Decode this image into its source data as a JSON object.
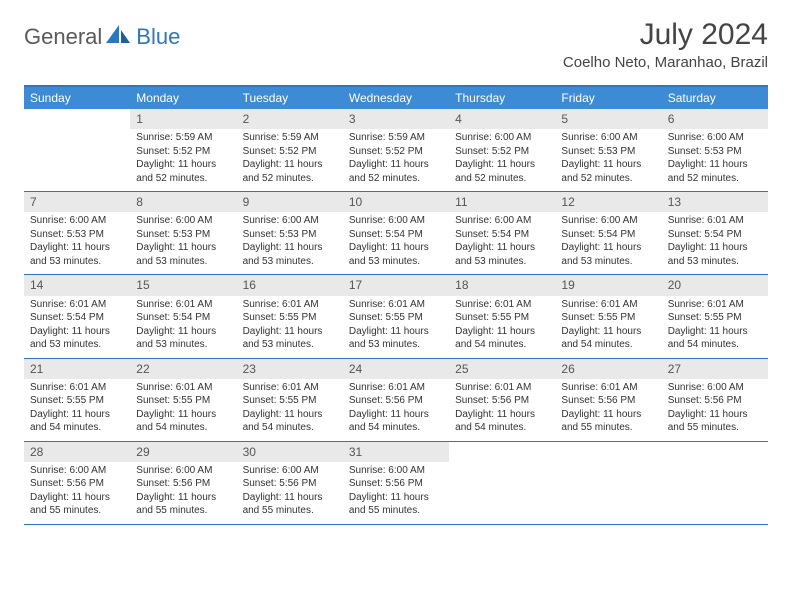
{
  "logo": {
    "text1": "General",
    "text2": "Blue"
  },
  "title": "July 2024",
  "location": "Coelho Neto, Maranhao, Brazil",
  "colors": {
    "header_bg": "#3d8bd4",
    "border": "#2b78c2",
    "daynum_bg": "#e9e9e9",
    "text": "#333333",
    "logo_gray": "#5a5a5a",
    "logo_blue": "#2b78c2"
  },
  "weekdays": [
    "Sunday",
    "Monday",
    "Tuesday",
    "Wednesday",
    "Thursday",
    "Friday",
    "Saturday"
  ],
  "weeks": [
    [
      {
        "n": "",
        "sr": "",
        "ss": "",
        "dl1": "",
        "dl2": ""
      },
      {
        "n": "1",
        "sr": "Sunrise: 5:59 AM",
        "ss": "Sunset: 5:52 PM",
        "dl1": "Daylight: 11 hours",
        "dl2": "and 52 minutes."
      },
      {
        "n": "2",
        "sr": "Sunrise: 5:59 AM",
        "ss": "Sunset: 5:52 PM",
        "dl1": "Daylight: 11 hours",
        "dl2": "and 52 minutes."
      },
      {
        "n": "3",
        "sr": "Sunrise: 5:59 AM",
        "ss": "Sunset: 5:52 PM",
        "dl1": "Daylight: 11 hours",
        "dl2": "and 52 minutes."
      },
      {
        "n": "4",
        "sr": "Sunrise: 6:00 AM",
        "ss": "Sunset: 5:52 PM",
        "dl1": "Daylight: 11 hours",
        "dl2": "and 52 minutes."
      },
      {
        "n": "5",
        "sr": "Sunrise: 6:00 AM",
        "ss": "Sunset: 5:53 PM",
        "dl1": "Daylight: 11 hours",
        "dl2": "and 52 minutes."
      },
      {
        "n": "6",
        "sr": "Sunrise: 6:00 AM",
        "ss": "Sunset: 5:53 PM",
        "dl1": "Daylight: 11 hours",
        "dl2": "and 52 minutes."
      }
    ],
    [
      {
        "n": "7",
        "sr": "Sunrise: 6:00 AM",
        "ss": "Sunset: 5:53 PM",
        "dl1": "Daylight: 11 hours",
        "dl2": "and 53 minutes."
      },
      {
        "n": "8",
        "sr": "Sunrise: 6:00 AM",
        "ss": "Sunset: 5:53 PM",
        "dl1": "Daylight: 11 hours",
        "dl2": "and 53 minutes."
      },
      {
        "n": "9",
        "sr": "Sunrise: 6:00 AM",
        "ss": "Sunset: 5:53 PM",
        "dl1": "Daylight: 11 hours",
        "dl2": "and 53 minutes."
      },
      {
        "n": "10",
        "sr": "Sunrise: 6:00 AM",
        "ss": "Sunset: 5:54 PM",
        "dl1": "Daylight: 11 hours",
        "dl2": "and 53 minutes."
      },
      {
        "n": "11",
        "sr": "Sunrise: 6:00 AM",
        "ss": "Sunset: 5:54 PM",
        "dl1": "Daylight: 11 hours",
        "dl2": "and 53 minutes."
      },
      {
        "n": "12",
        "sr": "Sunrise: 6:00 AM",
        "ss": "Sunset: 5:54 PM",
        "dl1": "Daylight: 11 hours",
        "dl2": "and 53 minutes."
      },
      {
        "n": "13",
        "sr": "Sunrise: 6:01 AM",
        "ss": "Sunset: 5:54 PM",
        "dl1": "Daylight: 11 hours",
        "dl2": "and 53 minutes."
      }
    ],
    [
      {
        "n": "14",
        "sr": "Sunrise: 6:01 AM",
        "ss": "Sunset: 5:54 PM",
        "dl1": "Daylight: 11 hours",
        "dl2": "and 53 minutes."
      },
      {
        "n": "15",
        "sr": "Sunrise: 6:01 AM",
        "ss": "Sunset: 5:54 PM",
        "dl1": "Daylight: 11 hours",
        "dl2": "and 53 minutes."
      },
      {
        "n": "16",
        "sr": "Sunrise: 6:01 AM",
        "ss": "Sunset: 5:55 PM",
        "dl1": "Daylight: 11 hours",
        "dl2": "and 53 minutes."
      },
      {
        "n": "17",
        "sr": "Sunrise: 6:01 AM",
        "ss": "Sunset: 5:55 PM",
        "dl1": "Daylight: 11 hours",
        "dl2": "and 53 minutes."
      },
      {
        "n": "18",
        "sr": "Sunrise: 6:01 AM",
        "ss": "Sunset: 5:55 PM",
        "dl1": "Daylight: 11 hours",
        "dl2": "and 54 minutes."
      },
      {
        "n": "19",
        "sr": "Sunrise: 6:01 AM",
        "ss": "Sunset: 5:55 PM",
        "dl1": "Daylight: 11 hours",
        "dl2": "and 54 minutes."
      },
      {
        "n": "20",
        "sr": "Sunrise: 6:01 AM",
        "ss": "Sunset: 5:55 PM",
        "dl1": "Daylight: 11 hours",
        "dl2": "and 54 minutes."
      }
    ],
    [
      {
        "n": "21",
        "sr": "Sunrise: 6:01 AM",
        "ss": "Sunset: 5:55 PM",
        "dl1": "Daylight: 11 hours",
        "dl2": "and 54 minutes."
      },
      {
        "n": "22",
        "sr": "Sunrise: 6:01 AM",
        "ss": "Sunset: 5:55 PM",
        "dl1": "Daylight: 11 hours",
        "dl2": "and 54 minutes."
      },
      {
        "n": "23",
        "sr": "Sunrise: 6:01 AM",
        "ss": "Sunset: 5:55 PM",
        "dl1": "Daylight: 11 hours",
        "dl2": "and 54 minutes."
      },
      {
        "n": "24",
        "sr": "Sunrise: 6:01 AM",
        "ss": "Sunset: 5:56 PM",
        "dl1": "Daylight: 11 hours",
        "dl2": "and 54 minutes."
      },
      {
        "n": "25",
        "sr": "Sunrise: 6:01 AM",
        "ss": "Sunset: 5:56 PM",
        "dl1": "Daylight: 11 hours",
        "dl2": "and 54 minutes."
      },
      {
        "n": "26",
        "sr": "Sunrise: 6:01 AM",
        "ss": "Sunset: 5:56 PM",
        "dl1": "Daylight: 11 hours",
        "dl2": "and 55 minutes."
      },
      {
        "n": "27",
        "sr": "Sunrise: 6:00 AM",
        "ss": "Sunset: 5:56 PM",
        "dl1": "Daylight: 11 hours",
        "dl2": "and 55 minutes."
      }
    ],
    [
      {
        "n": "28",
        "sr": "Sunrise: 6:00 AM",
        "ss": "Sunset: 5:56 PM",
        "dl1": "Daylight: 11 hours",
        "dl2": "and 55 minutes."
      },
      {
        "n": "29",
        "sr": "Sunrise: 6:00 AM",
        "ss": "Sunset: 5:56 PM",
        "dl1": "Daylight: 11 hours",
        "dl2": "and 55 minutes."
      },
      {
        "n": "30",
        "sr": "Sunrise: 6:00 AM",
        "ss": "Sunset: 5:56 PM",
        "dl1": "Daylight: 11 hours",
        "dl2": "and 55 minutes."
      },
      {
        "n": "31",
        "sr": "Sunrise: 6:00 AM",
        "ss": "Sunset: 5:56 PM",
        "dl1": "Daylight: 11 hours",
        "dl2": "and 55 minutes."
      },
      {
        "n": "",
        "sr": "",
        "ss": "",
        "dl1": "",
        "dl2": ""
      },
      {
        "n": "",
        "sr": "",
        "ss": "",
        "dl1": "",
        "dl2": ""
      },
      {
        "n": "",
        "sr": "",
        "ss": "",
        "dl1": "",
        "dl2": ""
      }
    ]
  ]
}
